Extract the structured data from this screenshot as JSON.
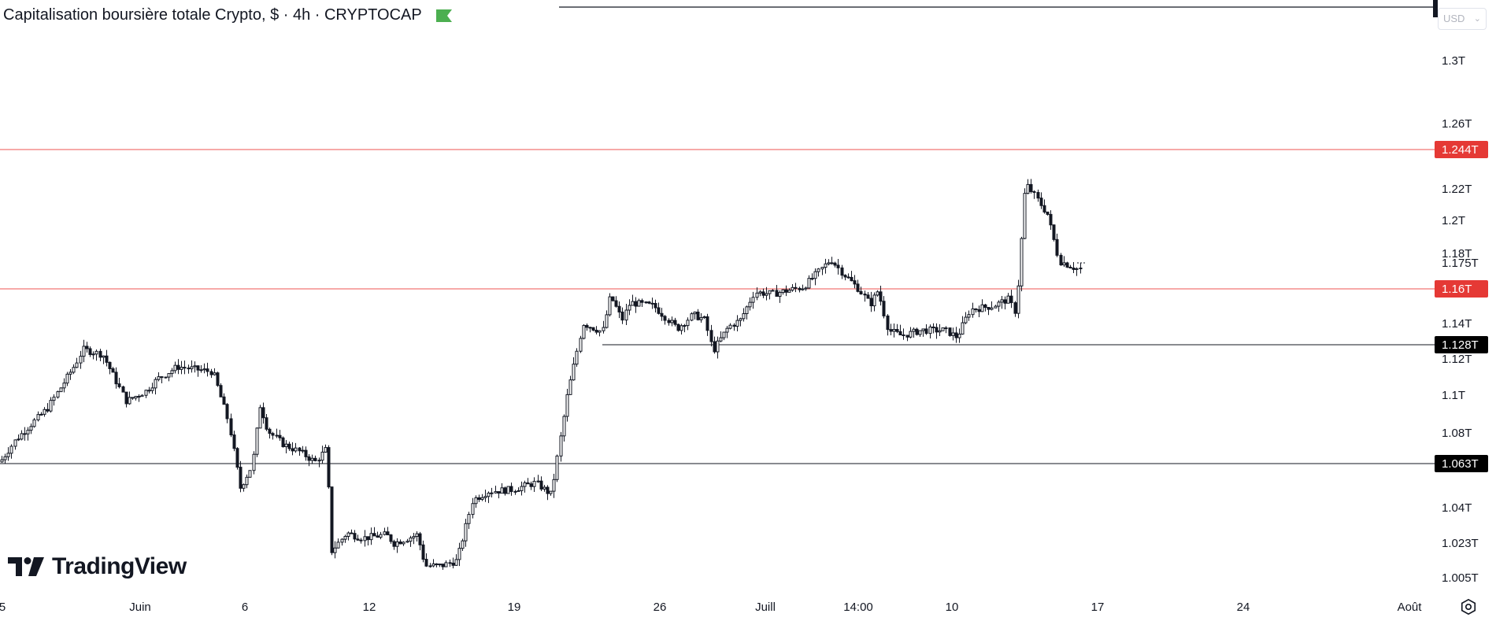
{
  "header": {
    "title": "Capitalisation boursière totale Crypto, $ · 4h · CRYPTOCAP",
    "currency": "USD",
    "flag_color": "#4caf50"
  },
  "logo": {
    "text": "TradingView"
  },
  "chart_data": {
    "type": "candlestick",
    "title": "Capitalisation boursière totale Crypto, $ · 4h · CRYPTOCAP",
    "y_axis": {
      "ticks": [
        "1.3T",
        "1.26T",
        "1.22T",
        "1.2T",
        "1.18T",
        "1.14T",
        "1.12T",
        "1.1T",
        "1.08T",
        "1.04T",
        "1.023T",
        "1.005T"
      ],
      "range": [
        0.99,
        1.33
      ]
    },
    "x_axis": {
      "ticks": [
        "5",
        "Juin",
        "6",
        "12",
        "19",
        "26",
        "Juill",
        "14:00",
        "10",
        "17",
        "24",
        "Août"
      ]
    },
    "last_price": "1.175T",
    "horizontal_lines": [
      {
        "label": "1.244T",
        "color": "#e53935",
        "style": "red"
      },
      {
        "label": "1.16T",
        "color": "#e53935",
        "style": "red"
      },
      {
        "label": "1.128T",
        "color": "#000000",
        "style": "black"
      },
      {
        "label": "1.063T",
        "color": "#000000",
        "style": "black"
      }
    ],
    "anchors": [
      [
        0,
        1.062
      ],
      [
        20,
        1.075
      ],
      [
        60,
        1.093
      ],
      [
        95,
        1.118
      ],
      [
        105,
        1.127
      ],
      [
        130,
        1.124
      ],
      [
        160,
        1.097
      ],
      [
        185,
        1.103
      ],
      [
        200,
        1.11
      ],
      [
        225,
        1.117
      ],
      [
        270,
        1.114
      ],
      [
        290,
        1.085
      ],
      [
        305,
        1.047
      ],
      [
        320,
        1.06
      ],
      [
        330,
        1.095
      ],
      [
        340,
        1.08
      ],
      [
        360,
        1.072
      ],
      [
        380,
        1.068
      ],
      [
        400,
        1.062
      ],
      [
        415,
        1.07
      ],
      [
        420,
        1.01
      ],
      [
        440,
        1.021
      ],
      [
        460,
        1.018
      ],
      [
        490,
        1.02
      ],
      [
        500,
        1.015
      ],
      [
        530,
        1.02
      ],
      [
        540,
        1.002
      ],
      [
        560,
        1.002
      ],
      [
        580,
        1.005
      ],
      [
        600,
        1.04
      ],
      [
        620,
        1.045
      ],
      [
        650,
        1.046
      ],
      [
        680,
        1.05
      ],
      [
        700,
        1.043
      ],
      [
        720,
        1.1
      ],
      [
        740,
        1.142
      ],
      [
        765,
        1.137
      ],
      [
        775,
        1.158
      ],
      [
        790,
        1.144
      ],
      [
        800,
        1.154
      ],
      [
        830,
        1.152
      ],
      [
        860,
        1.139
      ],
      [
        880,
        1.147
      ],
      [
        895,
        1.144
      ],
      [
        905,
        1.126
      ],
      [
        925,
        1.14
      ],
      [
        940,
        1.144
      ],
      [
        958,
        1.16
      ],
      [
        980,
        1.159
      ],
      [
        1000,
        1.161
      ],
      [
        1020,
        1.163
      ],
      [
        1040,
        1.172
      ],
      [
        1055,
        1.179
      ],
      [
        1070,
        1.171
      ],
      [
        1090,
        1.162
      ],
      [
        1105,
        1.153
      ],
      [
        1115,
        1.161
      ],
      [
        1128,
        1.138
      ],
      [
        1145,
        1.135
      ],
      [
        1170,
        1.138
      ],
      [
        1200,
        1.138
      ],
      [
        1215,
        1.134
      ],
      [
        1232,
        1.15
      ],
      [
        1260,
        1.152
      ],
      [
        1280,
        1.156
      ],
      [
        1290,
        1.148
      ],
      [
        1302,
        1.223
      ],
      [
        1315,
        1.215
      ],
      [
        1330,
        1.205
      ],
      [
        1345,
        1.178
      ],
      [
        1370,
        1.173
      ],
      [
        1375,
        1.175
      ]
    ]
  }
}
